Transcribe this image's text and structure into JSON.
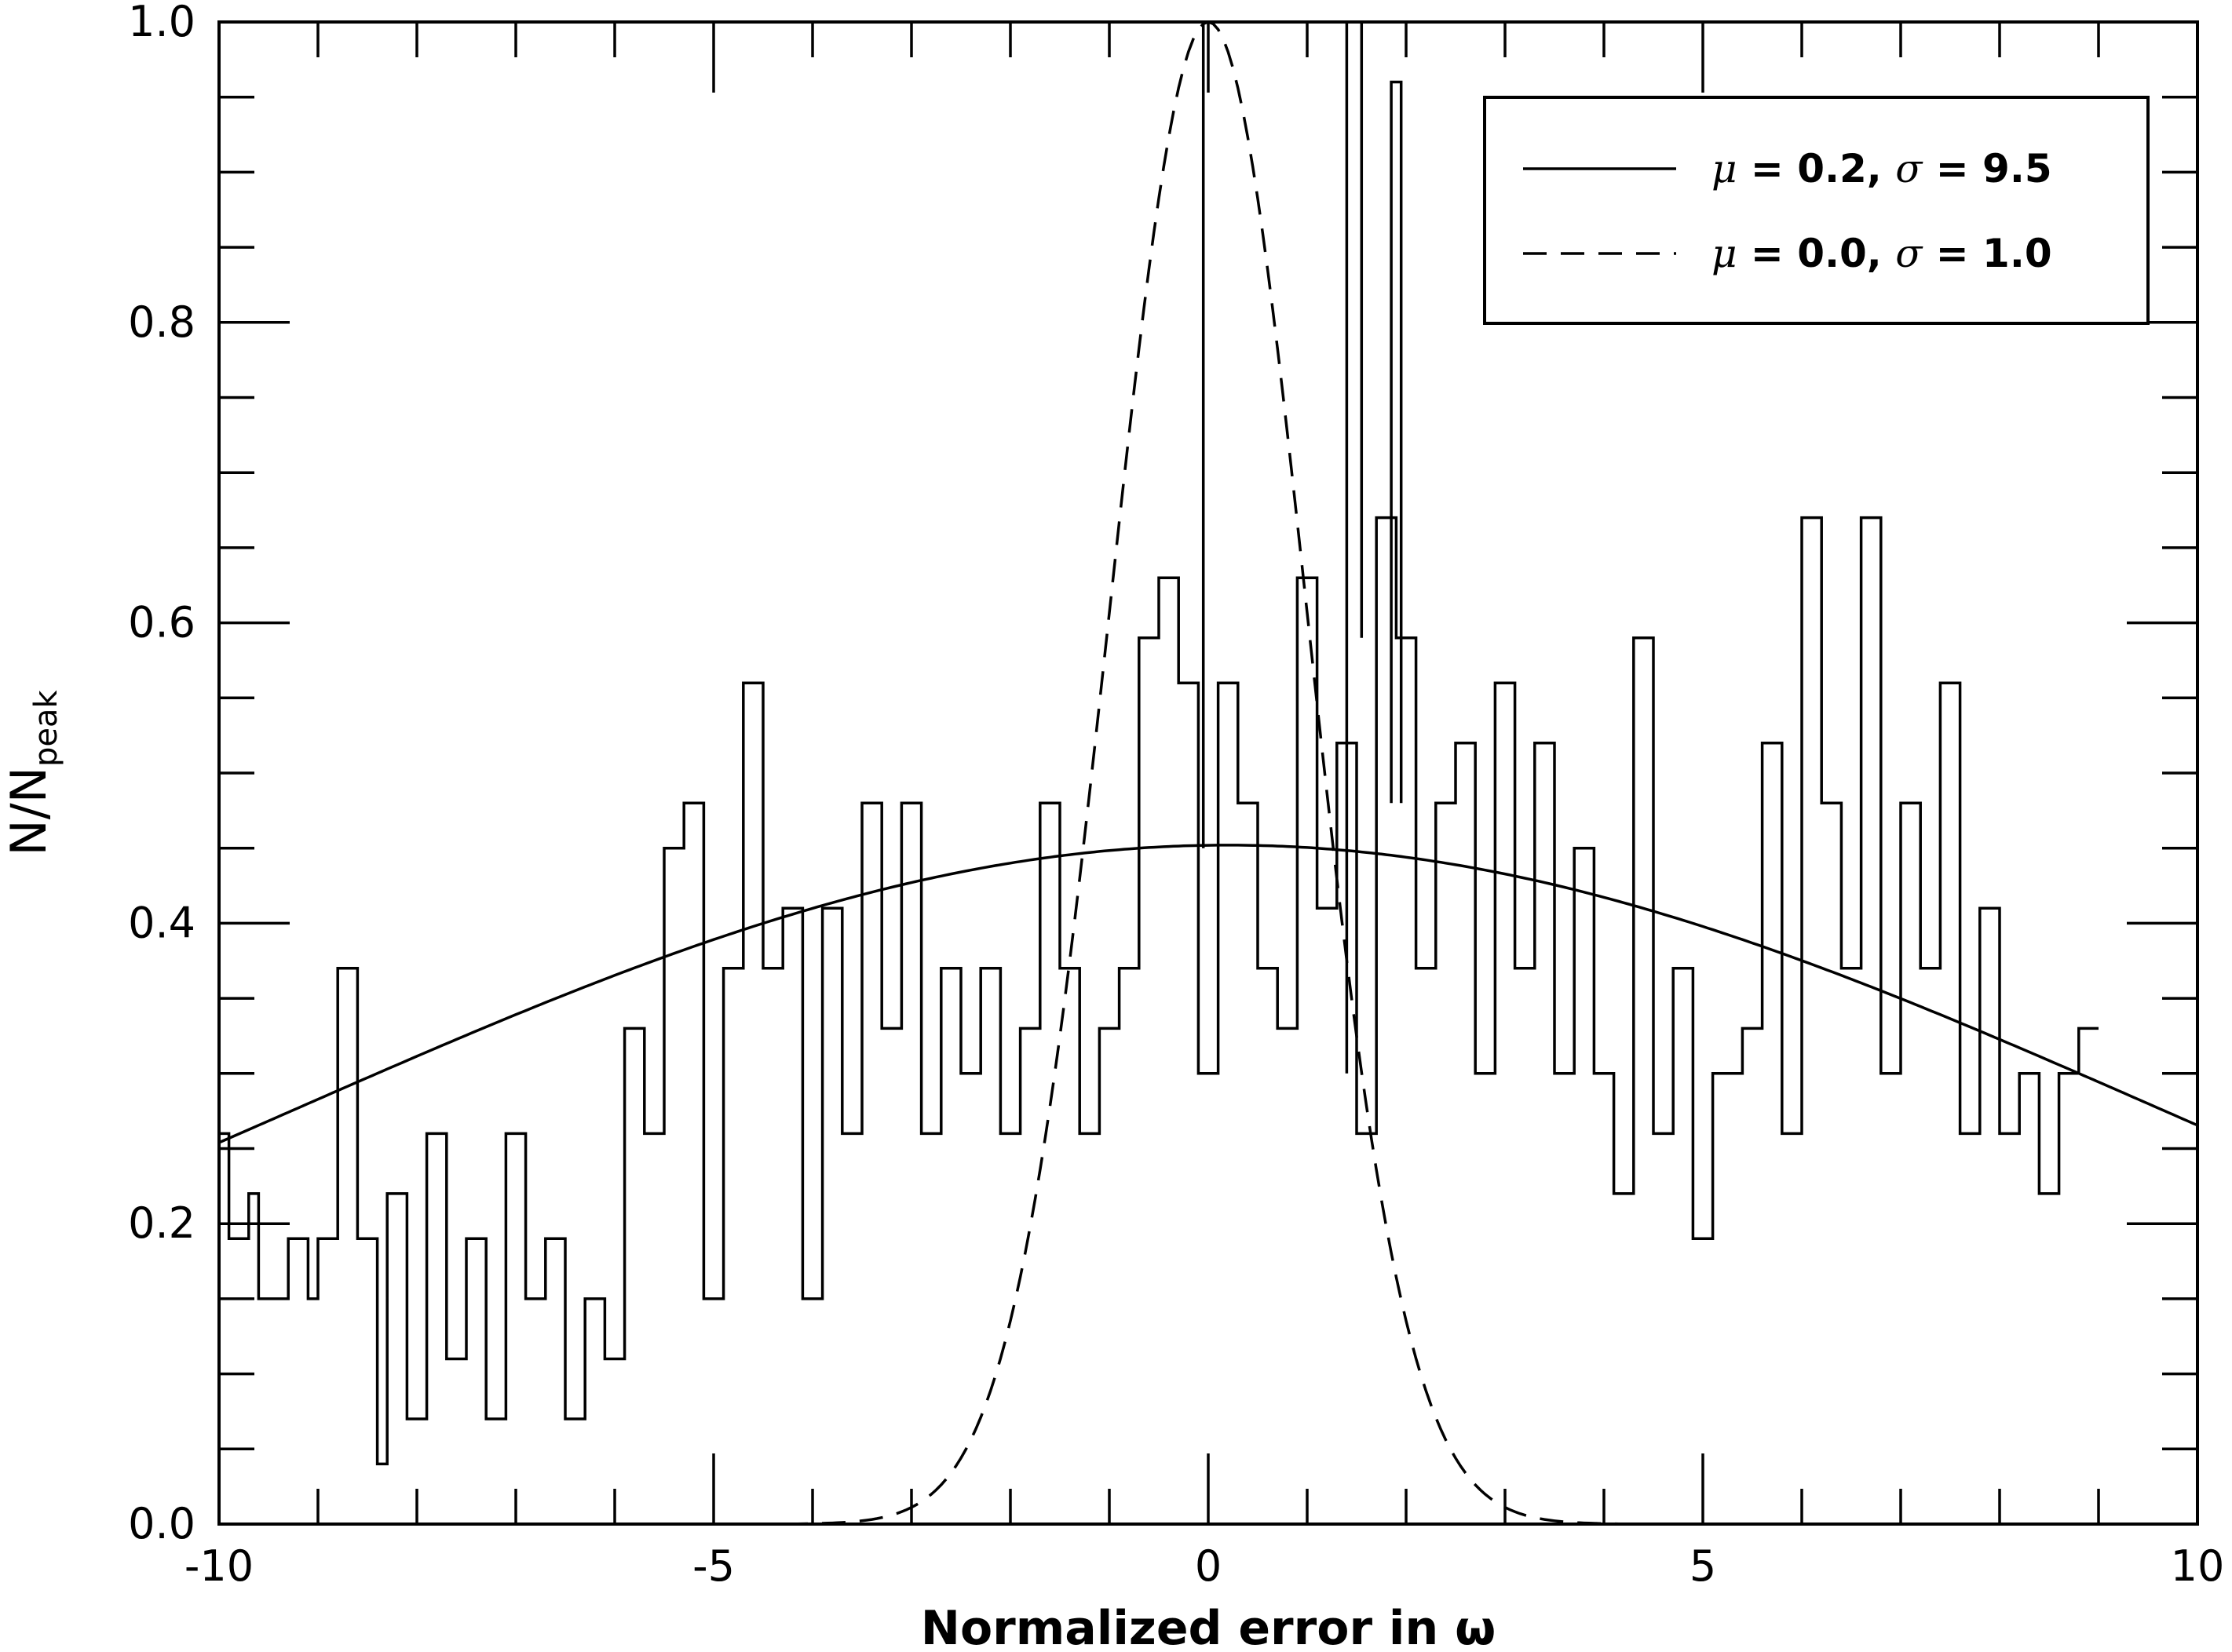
{
  "chart_data": {
    "type": "line",
    "title": "",
    "xlabel": "Normalized error in ω",
    "ylabel_main": "N/N",
    "ylabel_sub": "peak",
    "xlim": [
      -10,
      10
    ],
    "ylim": [
      0,
      1.0
    ],
    "xticks": [
      -10,
      -5,
      0,
      5,
      10
    ],
    "xtick_labels": [
      "-10",
      "-5",
      "0",
      "5",
      "10"
    ],
    "yticks": [
      0.0,
      0.2,
      0.4,
      0.6,
      0.8,
      1.0
    ],
    "ytick_labels": [
      "0.0",
      "0.2",
      "0.4",
      "0.6",
      "0.8",
      "1.0"
    ],
    "grid": false,
    "legend_position": "top-right",
    "series": [
      {
        "name": "μ = 0.2, σ = 9.5",
        "kind": "gaussian_fit",
        "style": "solid",
        "mu": 0.2,
        "sigma": 9.5,
        "amplitude": 0.452
      },
      {
        "name": "μ = 0.0, σ = 1.0",
        "kind": "gaussian_reference",
        "style": "dashed",
        "mu": 0.0,
        "sigma": 1.0,
        "amplitude": 1.0
      },
      {
        "name": "",
        "kind": "histogram",
        "style": "solid-step",
        "bin_edges_start": -10.0,
        "bin_width": 0.1,
        "values": [
          0.26,
          0.19,
          0.19,
          0.22,
          0.15,
          0.15,
          0.15,
          0.19,
          0.19,
          0.15,
          0.19,
          0.19,
          0.37,
          0.37,
          0.19,
          0.19,
          0.04,
          0.22,
          0.22,
          0.07,
          0.07,
          0.26,
          0.26,
          0.11,
          0.11,
          0.19,
          0.19,
          0.07,
          0.07,
          0.26,
          0.26,
          0.15,
          0.15,
          0.19,
          0.19,
          0.07,
          0.07,
          0.15,
          0.15,
          0.11,
          0.11,
          0.33,
          0.33,
          0.26,
          0.26,
          0.45,
          0.45,
          0.48,
          0.48,
          0.15,
          0.15,
          0.37,
          0.37,
          0.56,
          0.56,
          0.37,
          0.37,
          0.41,
          0.41,
          0.15,
          0.15,
          0.41,
          0.41,
          0.26,
          0.26,
          0.48,
          0.48,
          0.33,
          0.33,
          0.48,
          0.48,
          0.26,
          0.26,
          0.37,
          0.37,
          0.3,
          0.3,
          0.37,
          0.37,
          0.26,
          0.26,
          0.33,
          0.33,
          0.48,
          0.48,
          0.37,
          0.37,
          0.26,
          0.26,
          0.33,
          0.33,
          0.37,
          0.37,
          0.59,
          0.59,
          0.63,
          0.63,
          0.56,
          0.56,
          0.3,
          0.3,
          0.56,
          0.56,
          0.48,
          0.48,
          0.37,
          0.37,
          0.33,
          0.33,
          0.63,
          0.63,
          0.41,
          0.41,
          0.52,
          0.52,
          0.26,
          0.26,
          0.67,
          0.67,
          0.59,
          0.59,
          0.37,
          0.37,
          0.48,
          0.48,
          0.52,
          0.52,
          0.3,
          0.3,
          0.56,
          0.56,
          0.37,
          0.37,
          0.52,
          0.52,
          0.3,
          0.3,
          0.45,
          0.45,
          0.3,
          0.3,
          0.22,
          0.22,
          0.59,
          0.59,
          0.26,
          0.26,
          0.37,
          0.37,
          0.19,
          0.19,
          0.3,
          0.3,
          0.3,
          0.33,
          0.33,
          0.52,
          0.52,
          0.26,
          0.26,
          0.67,
          0.67,
          0.48,
          0.48,
          0.37,
          0.37,
          0.67,
          0.67,
          0.3,
          0.3,
          0.48,
          0.48,
          0.37,
          0.37,
          0.56,
          0.56,
          0.26,
          0.26,
          0.41,
          0.41,
          0.26,
          0.26,
          0.3,
          0.3,
          0.22,
          0.22,
          0.3,
          0.3,
          0.33,
          0.33
        ]
      }
    ]
  },
  "legend": {
    "entries": [
      {
        "mu_symbol": "μ",
        "mu_value": " = 0.2, ",
        "sigma_symbol": "σ",
        "sigma_value": " = 9.5"
      },
      {
        "mu_symbol": "μ",
        "mu_value": " = 0.0, ",
        "sigma_symbol": "σ",
        "sigma_value": " = 1.0"
      }
    ]
  }
}
